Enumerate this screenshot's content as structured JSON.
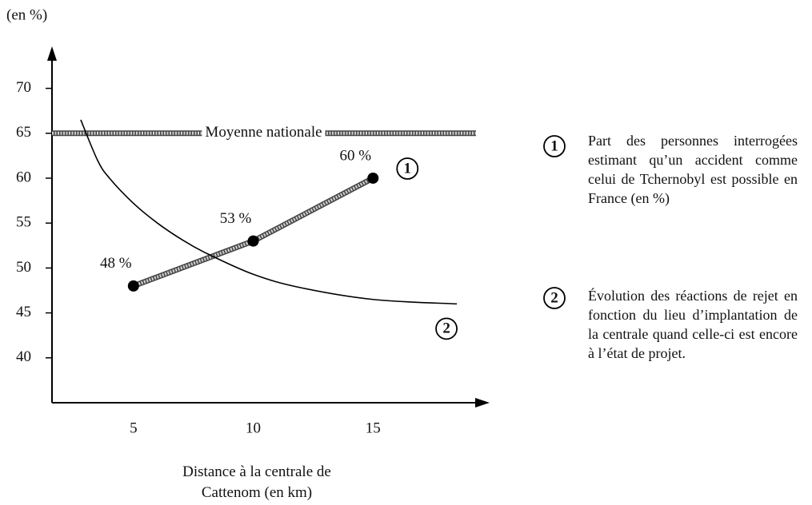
{
  "chart_data": {
    "type": "line",
    "y_label": "(en %)",
    "x_label": "Distance à la centrale de Cattenom (en km)",
    "xlim": [
      1.6,
      19.8
    ],
    "xticks": [
      5,
      10,
      15
    ],
    "ylim": [
      35,
      74.5
    ],
    "yticks": [
      40,
      45,
      50,
      55,
      60,
      65,
      70
    ],
    "reference": {
      "label": "Moyenne nationale",
      "value": 65
    },
    "series": [
      {
        "name": "1",
        "description": "Part des personnes interrogées estimant qu’un accident comme celui de Tchernobyl est possible en France (en %)",
        "color": "#000000",
        "x": [
          5,
          10,
          15
        ],
        "values": [
          48,
          53,
          60
        ],
        "value_labels": [
          "48 %",
          "53 %",
          "60 %"
        ]
      },
      {
        "name": "2",
        "description": "Évolution des réactions de rejet en fonction du lieu d’implantation de la centrale quand celle-ci est encore à l’état de projet.",
        "color": "#000000",
        "x": [
          2.8,
          3.5,
          4,
          5,
          6,
          7,
          8,
          10,
          12,
          15,
          18.5
        ],
        "values": [
          66.5,
          62,
          60,
          57.2,
          55,
          53.2,
          51.7,
          49.3,
          47.8,
          46.5,
          46
        ]
      }
    ]
  }
}
